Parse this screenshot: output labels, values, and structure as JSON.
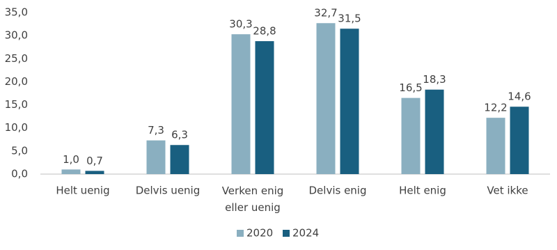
{
  "chart_data": {
    "type": "bar",
    "categories": [
      "Helt uenig",
      "Delvis uenig",
      "Verken enig\neller uenig",
      "Delvis enig",
      "Helt enig",
      "Vet ikke"
    ],
    "series": [
      {
        "name": "2020",
        "color": "#8aafc0",
        "values": [
          1.0,
          7.3,
          30.3,
          32.7,
          16.5,
          12.2
        ],
        "value_labels": [
          "1,0",
          "7,3",
          "30,3",
          "32,7",
          "16,5",
          "12,2"
        ]
      },
      {
        "name": "2024",
        "color": "#195f80",
        "values": [
          0.7,
          6.3,
          28.8,
          31.5,
          18.3,
          14.6
        ],
        "value_labels": [
          "0,7",
          "6,3",
          "28,8",
          "31,5",
          "18,3",
          "14,6"
        ]
      }
    ],
    "ylim": [
      0,
      35
    ],
    "yticks": [
      {
        "value": 0,
        "label": "0,0"
      },
      {
        "value": 5,
        "label": "5,0"
      },
      {
        "value": 10,
        "label": "10,0"
      },
      {
        "value": 15,
        "label": "15,0"
      },
      {
        "value": 20,
        "label": "20,0"
      },
      {
        "value": 25,
        "label": "25,0"
      },
      {
        "value": 30,
        "label": "30,0"
      },
      {
        "value": 35,
        "label": "35,0"
      }
    ],
    "grid": false,
    "legend": "bottom"
  }
}
